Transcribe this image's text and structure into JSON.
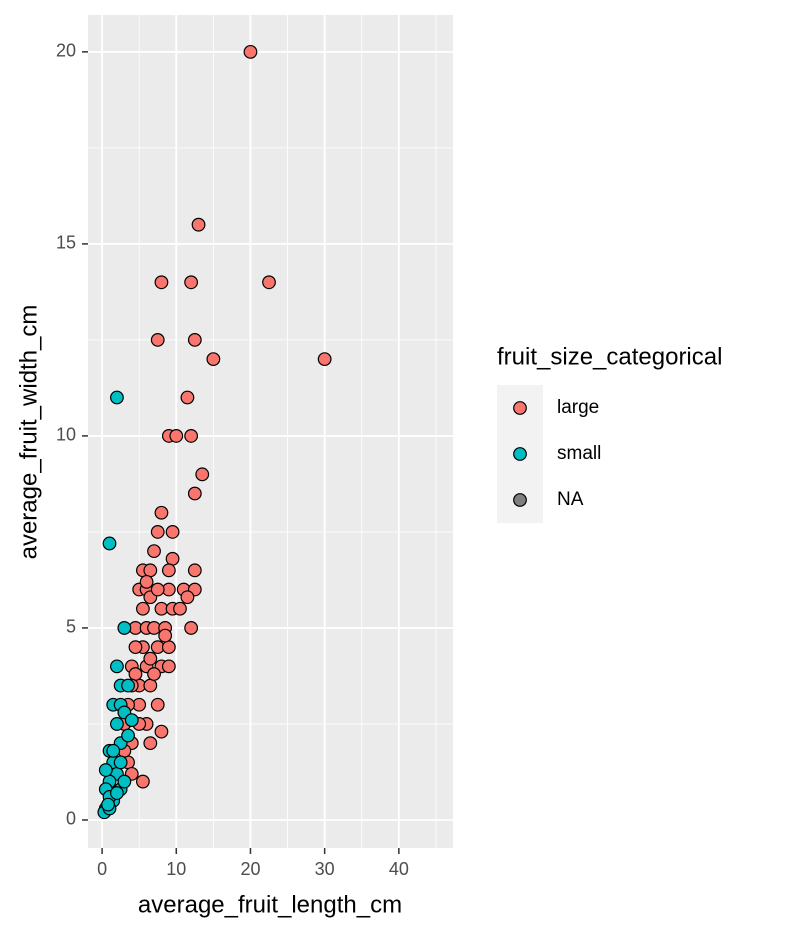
{
  "chart_data": {
    "type": "scatter",
    "x_label": "average_fruit_length_cm",
    "y_label": "average_fruit_width_cm",
    "legend_title": "fruit_size_categorical",
    "legend_position": "right",
    "grid": true,
    "xlim": [
      -1.9,
      47.3
    ],
    "ylim": [
      -0.73,
      20.96
    ],
    "xticks": [
      0,
      10,
      20,
      30,
      40
    ],
    "yticks": [
      0,
      5,
      10,
      15,
      20
    ],
    "x_minor_grid": [
      5,
      15,
      25,
      35,
      45
    ],
    "y_minor_grid": [
      2.5,
      7.5,
      12.5,
      17.5
    ],
    "series": [
      {
        "name": "large",
        "color": "#F8766D",
        "x": [
          20,
          13,
          8,
          12,
          22.5,
          7.5,
          12.5,
          15,
          30,
          11.5,
          9,
          10,
          12,
          13.5,
          12.5,
          8,
          7.5,
          9.5,
          7,
          9.5,
          5.5,
          6.5,
          9,
          12.5,
          5,
          6,
          9,
          11,
          12.5,
          11.5,
          8,
          9.5,
          10.5,
          12,
          4.5,
          6,
          7,
          8.5,
          5.5,
          7.5,
          9,
          4,
          6,
          8,
          9,
          5,
          6.5,
          7.5,
          5,
          6,
          8,
          4,
          6.5,
          5.5,
          3.5,
          4.5,
          6.5,
          7.5,
          6,
          4.5,
          5.5,
          6.5,
          3.5,
          4,
          3,
          5,
          7,
          8.5,
          3,
          4
        ],
        "y": [
          20,
          15.5,
          14,
          14,
          14,
          12.5,
          12.5,
          12,
          12,
          11,
          10,
          10,
          10,
          9,
          8.5,
          8,
          7.5,
          7.5,
          7,
          6.8,
          6.5,
          6.5,
          6.5,
          6.5,
          6,
          6,
          6,
          6,
          6,
          5.8,
          5.5,
          5.5,
          5.5,
          5,
          5,
          5,
          5,
          5,
          4.5,
          4.5,
          4.5,
          4,
          4,
          4,
          4,
          3.5,
          3.5,
          3,
          3,
          2.5,
          2.3,
          2,
          2,
          1,
          1.5,
          3.8,
          5.8,
          6,
          6.2,
          4.5,
          5.5,
          4.2,
          3,
          3.5,
          2.5,
          2.5,
          3.8,
          4.8,
          1.8,
          1.2
        ]
      },
      {
        "name": "small",
        "color": "#00BFC4",
        "x": [
          2,
          1,
          3,
          2,
          2.5,
          3.5,
          1.5,
          2.5,
          3,
          2,
          2.5,
          1,
          1.5,
          2,
          1,
          0.5,
          1.5,
          0.5,
          0.3,
          1,
          2.5,
          3,
          0.5,
          1.5,
          2.5,
          1,
          2,
          0.8,
          3.5,
          4
        ],
        "y": [
          11,
          7.2,
          5,
          4,
          3.5,
          3.5,
          3,
          3,
          2.8,
          2.5,
          2,
          1.8,
          1.5,
          1.2,
          1,
          0.8,
          0.5,
          0.3,
          0.2,
          0.3,
          0.8,
          1,
          1.3,
          1.8,
          1.5,
          0.6,
          0.7,
          0.4,
          2.2,
          2.6
        ]
      },
      {
        "name": "NA",
        "color": "#7F7F7F",
        "x": [],
        "y": []
      }
    ]
  }
}
